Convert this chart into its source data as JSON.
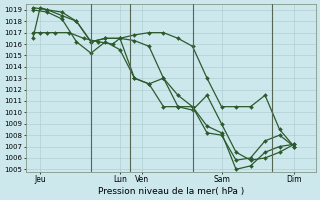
{
  "xlabel": "Pression niveau de la mer( hPa )",
  "bg_color": "#cce8ec",
  "grid_color": "#aac8cc",
  "line_color": "#2d5a2d",
  "vline_color": "#556655",
  "ylim": [
    1004.8,
    1019.5
  ],
  "yticks": [
    1005,
    1006,
    1007,
    1008,
    1009,
    1010,
    1011,
    1012,
    1013,
    1014,
    1015,
    1016,
    1017,
    1018,
    1019
  ],
  "xlim": [
    0,
    20
  ],
  "xtick_positions": [
    1.0,
    6.5,
    8.0,
    13.5,
    18.5
  ],
  "xtick_labels": [
    "Jeu",
    "Lun",
    "Ven",
    "Sam",
    "Dim"
  ],
  "vlines": [
    4.5,
    7.2,
    11.5,
    17.0
  ],
  "lines": [
    {
      "x": [
        0.5,
        1.0,
        1.5,
        2.0,
        3.0,
        4.0,
        5.0,
        6.0,
        6.5,
        7.5,
        8.5,
        9.5,
        10.5,
        11.5,
        12.5,
        13.5,
        14.5,
        15.5,
        16.5,
        17.5,
        18.5
      ],
      "y": [
        1017.0,
        1017.0,
        1017.0,
        1017.0,
        1017.0,
        1016.5,
        1016.2,
        1016.0,
        1016.5,
        1016.8,
        1017.0,
        1017.0,
        1016.5,
        1015.8,
        1013.0,
        1010.5,
        1010.5,
        1010.5,
        1011.5,
        1008.5,
        1007.0
      ]
    },
    {
      "x": [
        0.5,
        1.0,
        1.5,
        2.5,
        3.5,
        4.5,
        5.5,
        6.5,
        7.5,
        8.5,
        9.5,
        10.5,
        11.5,
        12.5,
        13.5,
        14.5,
        15.5,
        16.5,
        17.5,
        18.5
      ],
      "y": [
        1016.5,
        1019.2,
        1019.0,
        1018.8,
        1018.0,
        1016.2,
        1016.5,
        1016.5,
        1016.3,
        1015.8,
        1013.0,
        1010.5,
        1010.2,
        1011.5,
        1009.0,
        1006.5,
        1005.8,
        1006.0,
        1006.5,
        1007.2
      ]
    },
    {
      "x": [
        0.5,
        1.5,
        2.5,
        3.5,
        4.5,
        5.5,
        6.5,
        7.5,
        8.5,
        9.5,
        10.5,
        11.5,
        12.5,
        13.5,
        14.5,
        15.5,
        16.5,
        17.5,
        18.5
      ],
      "y": [
        1019.2,
        1019.0,
        1018.5,
        1018.0,
        1016.2,
        1016.5,
        1016.5,
        1013.0,
        1012.5,
        1013.0,
        1011.5,
        1010.5,
        1008.8,
        1008.2,
        1005.0,
        1005.3,
        1006.5,
        1007.0,
        1007.2
      ]
    },
    {
      "x": [
        0.5,
        1.5,
        2.5,
        3.5,
        4.5,
        5.5,
        6.5,
        7.5,
        8.5,
        9.5,
        10.5,
        11.5,
        12.5,
        13.5,
        14.5,
        15.5,
        16.5,
        17.5,
        18.5
      ],
      "y": [
        1019.0,
        1018.8,
        1018.2,
        1016.2,
        1015.2,
        1016.2,
        1015.5,
        1013.0,
        1012.5,
        1010.5,
        1010.5,
        1010.5,
        1008.2,
        1008.0,
        1005.8,
        1006.0,
        1007.5,
        1008.0,
        1007.0
      ]
    }
  ],
  "marker": "D",
  "ms": 2.0,
  "lw": 0.9
}
